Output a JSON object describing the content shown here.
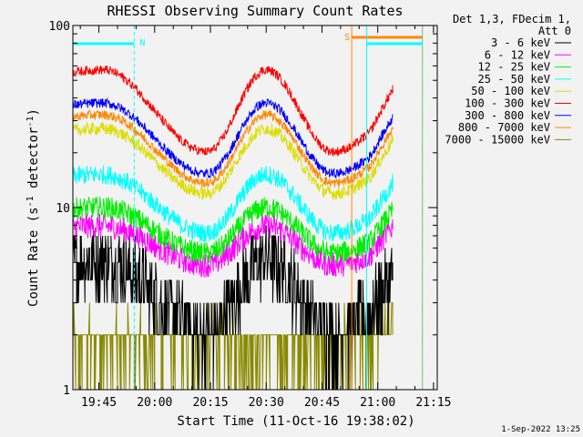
{
  "chart_data": {
    "type": "line",
    "title": "RHESSI Observing Summary Count Rates",
    "xlabel": "Start Time (11-Oct-16 19:38:02)",
    "ylabel_main": "Count Rate (s",
    "ylabel_sup1": "-1",
    "ylabel_mid": " detector",
    "ylabel_sup2": "-1",
    "ylabel_end": ")",
    "y_scale": "log",
    "ylim": [
      1,
      100
    ],
    "xlim_minutes": [
      0,
      98
    ],
    "x_ticks": [
      {
        "label": "19:45",
        "minutes": 7
      },
      {
        "label": "20:00",
        "minutes": 22
      },
      {
        "label": "20:15",
        "minutes": 37
      },
      {
        "label": "20:30",
        "minutes": 52
      },
      {
        "label": "20:45",
        "minutes": 67
      },
      {
        "label": "21:00",
        "minutes": 82
      },
      {
        "label": "21:15",
        "minutes": 97
      }
    ],
    "y_tick_labels": [
      {
        "label": "1",
        "value": 1
      },
      {
        "label": "10",
        "value": 10
      },
      {
        "label": "100",
        "value": 100
      }
    ],
    "legend_header_line1": "Det 1,3, FDecim 1,",
    "legend_header_line2": "Att 0",
    "legend_placement": "top-right, outside plot",
    "series": [
      {
        "name": "3 - 6 keV",
        "color": "#000000",
        "base": 3.3,
        "amp": 1.5,
        "noise": 0.45,
        "floor": 1.0
      },
      {
        "name": "6 - 12 keV",
        "color": "#ff00ff",
        "base": 6.2,
        "amp": 1.25,
        "noise": 0.16,
        "floor": 0
      },
      {
        "name": "12 - 25 keV",
        "color": "#00ee00",
        "base": 7.5,
        "amp": 1.3,
        "noise": 0.14,
        "floor": 0
      },
      {
        "name": "25 - 50 keV",
        "color": "#00ffff",
        "base": 10.5,
        "amp": 1.4,
        "noise": 0.12,
        "floor": 0
      },
      {
        "name": "50 - 100 keV",
        "color": "#dddd00",
        "base": 18,
        "amp": 1.45,
        "noise": 0.08,
        "floor": 0
      },
      {
        "name": "100 - 300 keV",
        "color": "#ff0000",
        "base": 34,
        "amp": 1.6,
        "noise": 0.06,
        "floor": 0
      },
      {
        "name": "300 - 800 keV",
        "color": "#0000ff",
        "base": 24,
        "amp": 1.5,
        "noise": 0.06,
        "floor": 0
      },
      {
        "name": "800 - 7000 keV",
        "color": "#ff8800",
        "base": 21,
        "amp": 1.48,
        "noise": 0.06,
        "floor": 0
      },
      {
        "name": "7000 - 15000 keV",
        "color": "#888800",
        "base": 1.8,
        "amp": 1.0,
        "noise": 0.35,
        "floor": 1.0
      }
    ],
    "annotations": [
      {
        "label": "N",
        "type": "night",
        "color": "#00ffff",
        "start_minutes": 0,
        "end_minutes": 16.5
      },
      {
        "label": "S",
        "type": "saa",
        "color": "#ff8800",
        "start_minutes": 75,
        "end_minutes": 94
      },
      {
        "label": "",
        "type": "night",
        "color": "#00ffff",
        "start_minutes": 79,
        "end_minutes": 94
      }
    ],
    "data_end_minutes": 86,
    "dip_minutes": [
      36,
      70
    ],
    "peak_minutes": [
      8,
      52
    ]
  },
  "footer": {
    "date_stamp": "1-Sep-2022 13:25"
  }
}
